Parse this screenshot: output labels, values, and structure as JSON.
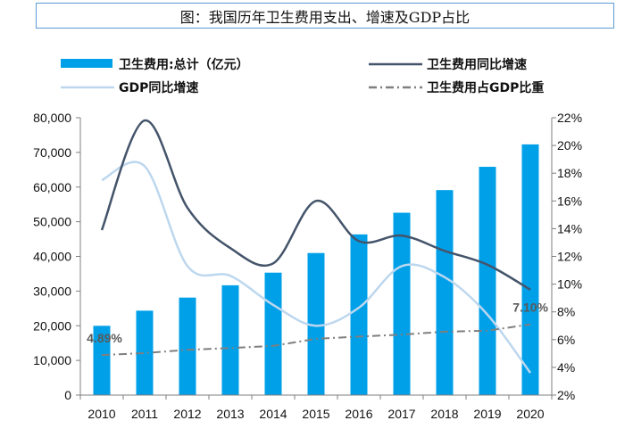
{
  "title": "图：我国历年卫生费用支出、增速及GDP占比",
  "chart_data": {
    "type": "bar",
    "categories": [
      "2010",
      "2011",
      "2012",
      "2013",
      "2014",
      "2015",
      "2016",
      "2017",
      "2018",
      "2019",
      "2020"
    ],
    "series": [
      {
        "name": "卫生费用:总计（亿元）",
        "type": "bar",
        "axis": "left",
        "color": "#00a0e9",
        "values": [
          19980,
          24346,
          28119,
          31669,
          35312,
          40975,
          46345,
          52598,
          59122,
          65841,
          72306
        ]
      },
      {
        "name": "卫生费用同比增速",
        "type": "line",
        "axis": "right",
        "color": "#44546a",
        "style": "solid",
        "values": [
          13.9,
          21.8,
          15.5,
          12.6,
          11.5,
          16.0,
          13.1,
          13.5,
          12.4,
          11.4,
          9.6
        ]
      },
      {
        "name": "GDP同比增速",
        "type": "line",
        "axis": "right",
        "color": "#bdd7ee",
        "style": "solid",
        "values": [
          17.5,
          18.5,
          11.3,
          10.6,
          8.5,
          7.0,
          8.3,
          11.3,
          10.5,
          7.8,
          3.6
        ]
      },
      {
        "name": "卫生费用占GDP比重",
        "type": "line",
        "axis": "right",
        "color": "#7f7f7f",
        "style": "dashdot",
        "values": [
          4.89,
          5.03,
          5.26,
          5.39,
          5.55,
          6.06,
          6.22,
          6.36,
          6.57,
          6.64,
          7.1
        ]
      }
    ],
    "data_labels": [
      {
        "series_index": 3,
        "point_index": 0,
        "text": "4.89%"
      },
      {
        "series_index": 3,
        "point_index": 10,
        "text": "7.10%"
      }
    ],
    "y_left": {
      "min": 0,
      "max": 80000,
      "step": 10000,
      "tick_labels": [
        "0",
        "10,000",
        "20,000",
        "30,000",
        "40,000",
        "50,000",
        "60,000",
        "70,000",
        "80,000"
      ]
    },
    "y_right": {
      "min": 2,
      "max": 22,
      "step": 2,
      "tick_labels": [
        "2%",
        "4%",
        "6%",
        "8%",
        "10%",
        "12%",
        "14%",
        "16%",
        "18%",
        "20%",
        "22%"
      ]
    },
    "grid": false,
    "legend_position": "top"
  }
}
